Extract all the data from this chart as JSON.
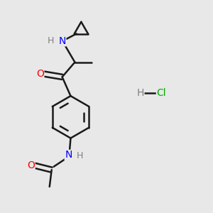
{
  "background_color": "#e8e8e8",
  "bond_color": "#1a1a1a",
  "atom_colors": {
    "O": "#ff0000",
    "N": "#0000ff",
    "Cl": "#00cc00",
    "H": "#808080",
    "C": "#1a1a1a"
  },
  "hcl_color": "#00aa00",
  "figsize": [
    3.0,
    3.0
  ],
  "dpi": 100
}
